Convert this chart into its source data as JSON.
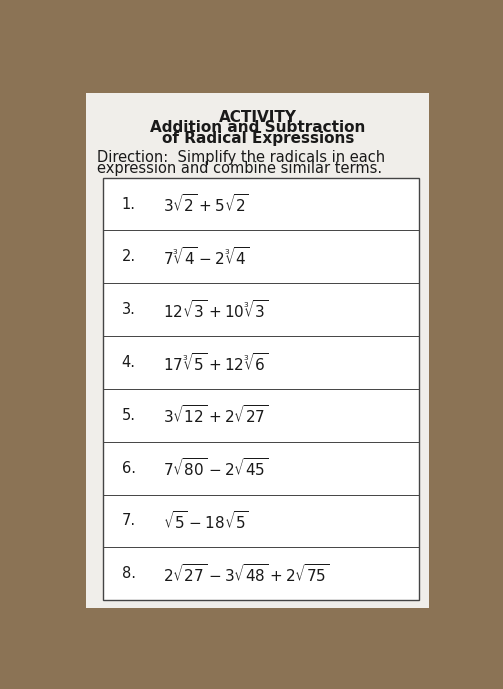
{
  "title_line1": "ACTIVITY",
  "title_line2": "Addition and Subtraction",
  "title_line3": "of Radical Expressions",
  "direction_line1": "Direction:  Simplify the radicals in each",
  "direction_line2": "expression and combine similar terms.",
  "bg_color": "#8B7355",
  "paper_color": "#f0eeea",
  "text_color": "#1a1a1a",
  "row_labels": [
    "1.",
    "2.",
    "3.",
    "4.",
    "5.",
    "6.",
    "7.",
    "8."
  ],
  "row_expressions_latex": [
    "$3\\sqrt{2} + 5\\sqrt{2}$",
    "$7\\sqrt[3]{4} - 2\\sqrt[3]{4}$",
    "$12\\sqrt{3} + 10\\sqrt[3]{3}$",
    "$17\\sqrt[3]{5} + 12\\sqrt[3]{6}$",
    "$3\\sqrt{12} + 2\\sqrt{27}$",
    "$7\\sqrt{80} - 2\\sqrt{45}$",
    "$\\sqrt{5} - 18\\sqrt{5}$",
    "$2\\sqrt{27} - 3\\sqrt{48} + 2\\sqrt{75}$"
  ],
  "num_rows": 8,
  "title_fontsize": 11,
  "expr_fontsize": 11,
  "label_fontsize": 10.5,
  "dir_fontsize": 10.5
}
